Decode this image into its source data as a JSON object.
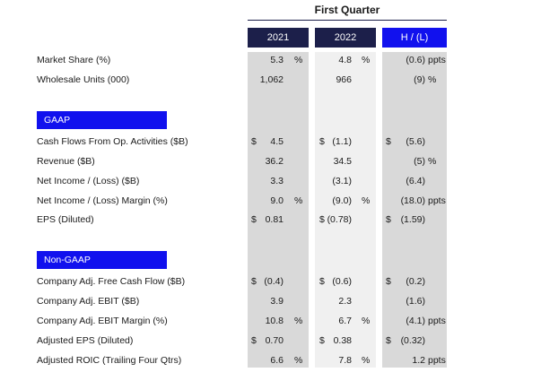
{
  "header": {
    "group_title": "First Quarter",
    "columns": [
      "2021",
      "2022",
      "H / (L)"
    ]
  },
  "colors": {
    "header_dark": "#1c1f4a",
    "header_accent": "#1111ee",
    "col_grey": "#d9d9d9",
    "col_light": "#f0f0f0"
  },
  "rows_top": [
    {
      "label": "Market Share (%)",
      "c1": {
        "cur": "",
        "num": "5.3",
        "unit": "%"
      },
      "c2": {
        "cur": "",
        "num": "4.8",
        "unit": "%"
      },
      "c3": {
        "cur": "",
        "num": "(0.6)",
        "unit": "ppts"
      }
    },
    {
      "label": "Wholesale Units (000)",
      "c1": {
        "cur": "",
        "num": "1,062",
        "unit": ""
      },
      "c2": {
        "cur": "",
        "num": "966",
        "unit": ""
      },
      "c3": {
        "cur": "",
        "num": "(9)",
        "unit": "%"
      }
    }
  ],
  "gaap": {
    "title": "GAAP",
    "rows": [
      {
        "label": "Cash Flows From Op. Activities ($B)",
        "c1": {
          "cur": "$",
          "num": "4.5",
          "unit": ""
        },
        "c2": {
          "cur": "$",
          "num": "(1.1)",
          "unit": ""
        },
        "c3": {
          "cur": "$",
          "num": "(5.6)",
          "unit": ""
        }
      },
      {
        "label": "Revenue ($B)",
        "c1": {
          "cur": "",
          "num": "36.2",
          "unit": ""
        },
        "c2": {
          "cur": "",
          "num": "34.5",
          "unit": ""
        },
        "c3": {
          "cur": "",
          "num": "(5)",
          "unit": "%"
        }
      },
      {
        "label": "Net Income / (Loss) ($B)",
        "c1": {
          "cur": "",
          "num": "3.3",
          "unit": ""
        },
        "c2": {
          "cur": "",
          "num": "(3.1)",
          "unit": ""
        },
        "c3": {
          "cur": "",
          "num": "(6.4)",
          "unit": ""
        }
      },
      {
        "label": "Net Income / (Loss) Margin (%)",
        "c1": {
          "cur": "",
          "num": "9.0",
          "unit": "%"
        },
        "c2": {
          "cur": "",
          "num": "(9.0)",
          "unit": "%"
        },
        "c3": {
          "cur": "",
          "num": "(18.0)",
          "unit": "ppts"
        }
      },
      {
        "label": "EPS (Diluted)",
        "c1": {
          "cur": "$",
          "num": "0.81",
          "unit": ""
        },
        "c2": {
          "cur": "$",
          "num": "(0.78)",
          "unit": ""
        },
        "c3": {
          "cur": "$",
          "num": "(1.59)",
          "unit": ""
        }
      }
    ]
  },
  "non_gaap": {
    "title": "Non-GAAP",
    "rows": [
      {
        "label": "Company Adj. Free Cash Flow ($B)",
        "c1": {
          "cur": "$",
          "num": "(0.4)",
          "unit": ""
        },
        "c2": {
          "cur": "$",
          "num": "(0.6)",
          "unit": ""
        },
        "c3": {
          "cur": "$",
          "num": "(0.2)",
          "unit": ""
        }
      },
      {
        "label": "Company Adj. EBIT ($B)",
        "c1": {
          "cur": "",
          "num": "3.9",
          "unit": ""
        },
        "c2": {
          "cur": "",
          "num": "2.3",
          "unit": ""
        },
        "c3": {
          "cur": "",
          "num": "(1.6)",
          "unit": ""
        }
      },
      {
        "label": "Company Adj. EBIT Margin (%)",
        "c1": {
          "cur": "",
          "num": "10.8",
          "unit": "%"
        },
        "c2": {
          "cur": "",
          "num": "6.7",
          "unit": "%"
        },
        "c3": {
          "cur": "",
          "num": "(4.1)",
          "unit": "ppts"
        }
      },
      {
        "label": "Adjusted EPS (Diluted)",
        "c1": {
          "cur": "$",
          "num": "0.70",
          "unit": ""
        },
        "c2": {
          "cur": "$",
          "num": "0.38",
          "unit": ""
        },
        "c3": {
          "cur": "$",
          "num": "(0.32)",
          "unit": ""
        }
      },
      {
        "label": "Adjusted ROIC (Trailing Four Qtrs)",
        "c1": {
          "cur": "",
          "num": "6.6",
          "unit": "%"
        },
        "c2": {
          "cur": "",
          "num": "7.8",
          "unit": "%"
        },
        "c3": {
          "cur": "",
          "num": "1.2",
          "unit": "ppts"
        }
      }
    ]
  }
}
